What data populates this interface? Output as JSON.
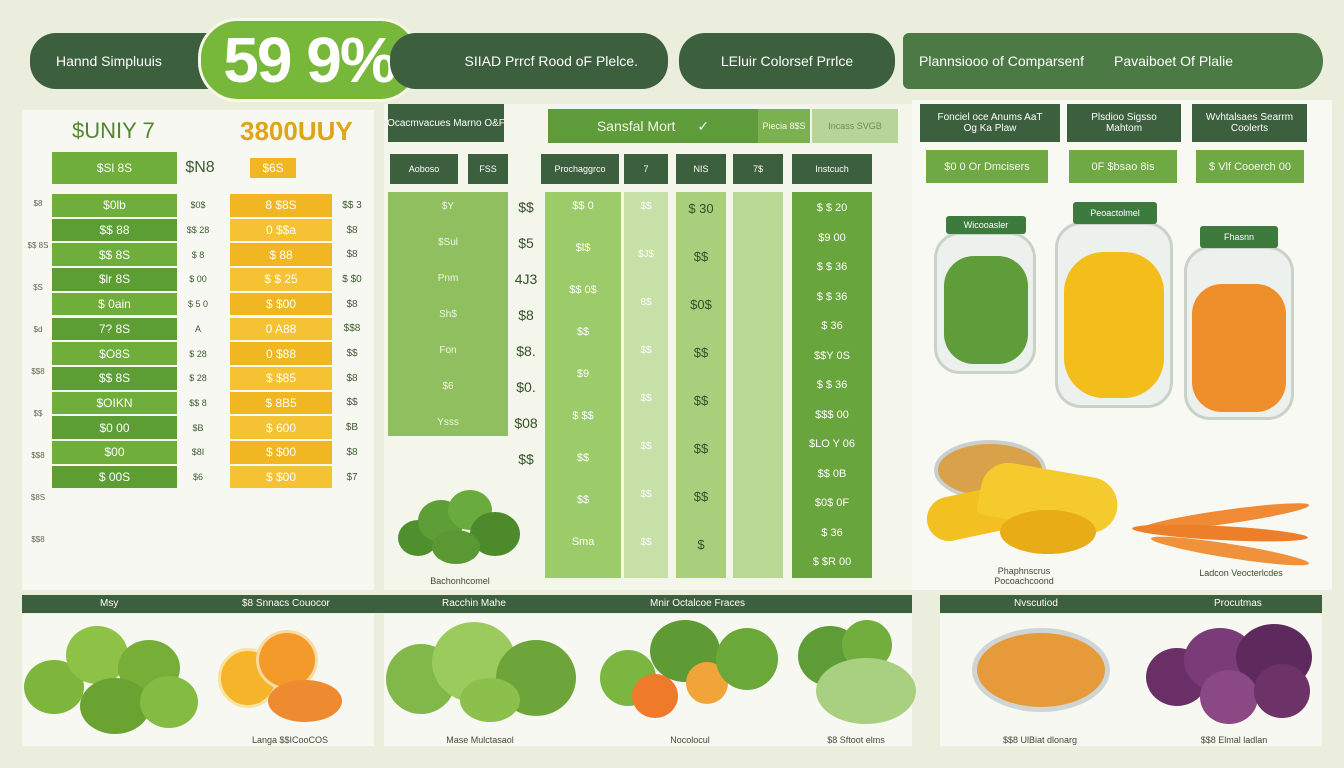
{
  "header": {
    "brand_label": "Hannd Simpluuis",
    "badge_value": "59 9%",
    "title": "SIIAD Prrcf Rood oF Plelce.",
    "subtitle": "LEluir Colorsef Prrlce",
    "comparison_label": "Plannsiooo of Comparsenf",
    "availability_label": "Pavaiboet Of Plalie"
  },
  "left_table": {
    "heading_left": "$UNIY 7",
    "heading_right": "3800UUY",
    "col_header_green": "$Sl 8S",
    "col_header_mid": "$N8",
    "col_header_yellow": "$6S",
    "green_cells": [
      "$0lb",
      "$$ 88",
      "$$ 8S",
      "$lr 8S",
      "$ 0ain",
      "7? 8S",
      "$O8S",
      "$$ 8S",
      "$OIKN",
      "$0 00",
      "$00",
      "$ 00S"
    ],
    "mid_cells": [
      "$0$",
      "$$ 28",
      "$ 8",
      "$ 00",
      "$ 5 0",
      "A",
      "$ 28",
      "$ 28",
      "$$ 8",
      "$B",
      "$8I",
      "$6"
    ],
    "yellow_cells": [
      "8 $8S",
      "0 $$a",
      "$ 88",
      "$ $ 25",
      "$ $00",
      "0 A88",
      "0 $88",
      "$ $85",
      "$ 8B5",
      "$ 600",
      "$ $00",
      "$ $00"
    ],
    "right_cells": [
      "$$ 3",
      "$8",
      "$8",
      "$ $0",
      "$8",
      "$$8",
      "$$",
      "$8",
      "$$",
      "$B",
      "$8",
      "$7"
    ],
    "row_labels": [
      "$8",
      "$$ 8S",
      "$S",
      "$d",
      "$$8",
      "$$",
      "$$8",
      "$8S",
      "$$8"
    ]
  },
  "middle_table": {
    "top_header_a": "Ocacmvacues Marno O&F",
    "top_header_b": "Sansfal Mort",
    "top_header_c": "Piecia 8$S",
    "top_header_d": "Incass SVGB",
    "col_headers": [
      "Aoboso",
      "FSS",
      "Prochaggrco",
      "7",
      "NIS",
      "7$",
      "Instcuch"
    ],
    "veg_labels": [
      "$Y",
      "$Sul",
      "Pnm",
      "Sh$",
      "Fon",
      "$6",
      "Ysss"
    ],
    "col1": [
      "$$",
      "$5",
      "4J3",
      "$8",
      "$8.",
      "$0.",
      "$08",
      "$$"
    ],
    "col2": [
      "$$ 0",
      "$l$",
      "$$ 0$",
      "$$",
      "$9",
      "$ $$",
      "$$",
      "$$",
      "Sma"
    ],
    "col3": [
      "$$",
      "$J$",
      "8$",
      "$$",
      "$$",
      "$$",
      "$$",
      "$$"
    ],
    "col4": [
      "$ 30",
      "$$",
      "$0$",
      "$$",
      "$$",
      "$$",
      "$$",
      "$"
    ],
    "price_col": [
      "$ $ 20",
      "$9 00",
      "$ $ 36",
      "$ $ 36",
      "$ 36",
      "$$Y 0S",
      "$ $ 36",
      "$$$ 00",
      "$LO Y 06",
      "$$ 0B",
      "$0$ 0F",
      "$ 36",
      "$ $R 00"
    ],
    "broccoli_caption": "Bachonhcomel"
  },
  "right_panel": {
    "box1": "Fonciel oce Anums AaT Og Ka Plaw",
    "box2": "Plsdioo Sigsso Mahtom",
    "box3": "Wvhtalsaes Searrm Coolerts",
    "value1": "$0 0 Or Dmcisers",
    "value2": "0F $bsao 8is",
    "value3": "$ Vlf Cooerch 00",
    "jar1_label": "Wicooasler",
    "jar2_label": "Peoactolmel",
    "jar3_label": "Fhasnn",
    "caption_mango": "Phaphnscrus Pocoachcoond",
    "caption_carrot": "Ladcon Veocterlcdes"
  },
  "bottom": {
    "band_labels": [
      "Msy",
      "$8 Snnacs Couocor",
      "Racchin Mahe",
      "Mnir Octalcoe Fraces",
      "Nvscutiod",
      "Procutmas"
    ],
    "captions": [
      "Langa $$ICooCOS",
      "Mase Mulctasaol",
      "Nocolocul",
      "$8 Sftoot elms",
      "$$8 UlBiat dlonarg",
      "$$8 Elmal ladlan"
    ]
  }
}
